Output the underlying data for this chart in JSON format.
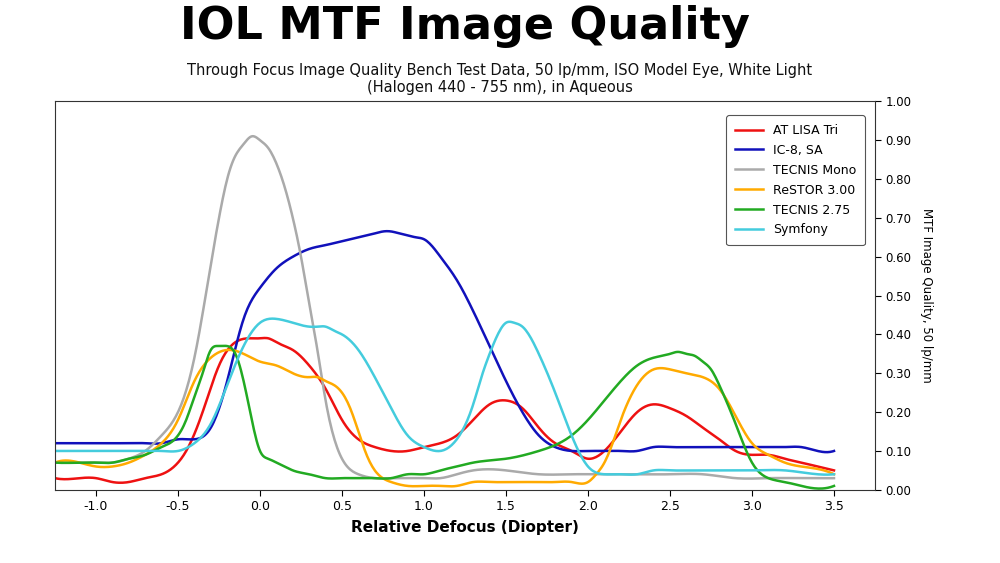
{
  "title": "IOL MTF Image Quality",
  "subtitle_line1": "Through Focus Image Quality Bench Test Data, 50 lp/mm, ISO Model Eye, White Light",
  "subtitle_line2": "(Halogen 440 - 755 nm), in Aqueous",
  "xlabel": "Relative Defocus (Diopter)",
  "ylabel": "MTF Image Quality, 50 lp/mm",
  "xlim": [
    -1.25,
    3.75
  ],
  "ylim": [
    0.0,
    1.0
  ],
  "xticks": [
    -1.0,
    -0.5,
    0.0,
    0.5,
    1.0,
    1.5,
    2.0,
    2.5,
    3.0,
    3.5
  ],
  "yticks_right": [
    0.0,
    0.1,
    0.2,
    0.3,
    0.4,
    0.5,
    0.6,
    0.7,
    0.8,
    0.9,
    1.0
  ],
  "background_color": "#ffffff",
  "title_fontsize": 32,
  "subtitle_fontsize": 10.5,
  "series": [
    {
      "name": "AT LISA Tri",
      "color": "#ee1111",
      "linewidth": 1.8,
      "x": [
        -1.25,
        -1.1,
        -1.0,
        -0.9,
        -0.8,
        -0.7,
        -0.6,
        -0.5,
        -0.45,
        -0.35,
        -0.25,
        -0.15,
        -0.05,
        0.0,
        0.05,
        0.1,
        0.15,
        0.2,
        0.3,
        0.4,
        0.5,
        0.6,
        0.7,
        0.8,
        0.9,
        1.0,
        1.1,
        1.2,
        1.3,
        1.4,
        1.5,
        1.6,
        1.7,
        1.8,
        1.9,
        2.0,
        2.1,
        2.2,
        2.3,
        2.4,
        2.5,
        2.6,
        2.7,
        2.8,
        2.9,
        3.0,
        3.1,
        3.2,
        3.3,
        3.4,
        3.5
      ],
      "y": [
        0.03,
        0.03,
        0.03,
        0.02,
        0.02,
        0.03,
        0.04,
        0.07,
        0.1,
        0.2,
        0.32,
        0.38,
        0.39,
        0.39,
        0.39,
        0.38,
        0.37,
        0.36,
        0.32,
        0.26,
        0.18,
        0.13,
        0.11,
        0.1,
        0.1,
        0.11,
        0.12,
        0.14,
        0.18,
        0.22,
        0.23,
        0.21,
        0.16,
        0.12,
        0.1,
        0.08,
        0.1,
        0.15,
        0.2,
        0.22,
        0.21,
        0.19,
        0.16,
        0.13,
        0.1,
        0.09,
        0.09,
        0.08,
        0.07,
        0.06,
        0.05
      ]
    },
    {
      "name": "IC-8, SA",
      "color": "#1111bb",
      "linewidth": 1.8,
      "x": [
        -1.25,
        -1.1,
        -1.0,
        -0.9,
        -0.8,
        -0.7,
        -0.6,
        -0.5,
        -0.4,
        -0.3,
        -0.2,
        -0.1,
        0.0,
        0.1,
        0.2,
        0.3,
        0.4,
        0.5,
        0.55,
        0.6,
        0.65,
        0.7,
        0.75,
        0.8,
        0.85,
        0.9,
        0.95,
        1.0,
        1.1,
        1.2,
        1.3,
        1.4,
        1.5,
        1.6,
        1.7,
        1.8,
        1.9,
        2.0,
        2.1,
        2.2,
        2.3,
        2.4,
        2.5,
        2.6,
        2.7,
        2.8,
        2.9,
        3.0,
        3.1,
        3.2,
        3.3,
        3.4,
        3.5
      ],
      "y": [
        0.12,
        0.12,
        0.12,
        0.12,
        0.12,
        0.12,
        0.12,
        0.13,
        0.13,
        0.16,
        0.28,
        0.44,
        0.52,
        0.57,
        0.6,
        0.62,
        0.63,
        0.64,
        0.645,
        0.65,
        0.655,
        0.66,
        0.665,
        0.665,
        0.66,
        0.655,
        0.65,
        0.645,
        0.6,
        0.54,
        0.46,
        0.37,
        0.28,
        0.2,
        0.14,
        0.11,
        0.1,
        0.1,
        0.1,
        0.1,
        0.1,
        0.11,
        0.11,
        0.11,
        0.11,
        0.11,
        0.11,
        0.11,
        0.11,
        0.11,
        0.11,
        0.1,
        0.1
      ]
    },
    {
      "name": "TECNIS Mono",
      "color": "#aaaaaa",
      "linewidth": 1.8,
      "x": [
        -1.25,
        -1.1,
        -1.0,
        -0.9,
        -0.8,
        -0.7,
        -0.6,
        -0.5,
        -0.4,
        -0.3,
        -0.25,
        -0.2,
        -0.15,
        -0.1,
        -0.05,
        0.0,
        0.05,
        0.1,
        0.15,
        0.2,
        0.25,
        0.3,
        0.35,
        0.4,
        0.5,
        0.6,
        0.7,
        0.8,
        0.9,
        1.0,
        1.1,
        1.2,
        1.3,
        1.5,
        1.7,
        1.9,
        2.1,
        2.3,
        2.5,
        2.7,
        2.9,
        3.1,
        3.3,
        3.5
      ],
      "y": [
        0.07,
        0.07,
        0.07,
        0.07,
        0.08,
        0.1,
        0.14,
        0.2,
        0.34,
        0.58,
        0.7,
        0.8,
        0.86,
        0.89,
        0.91,
        0.9,
        0.88,
        0.84,
        0.78,
        0.7,
        0.6,
        0.48,
        0.36,
        0.23,
        0.08,
        0.04,
        0.03,
        0.03,
        0.03,
        0.03,
        0.03,
        0.04,
        0.05,
        0.05,
        0.04,
        0.04,
        0.04,
        0.04,
        0.04,
        0.04,
        0.03,
        0.03,
        0.03,
        0.03
      ]
    },
    {
      "name": "ReSTOR 3.00",
      "color": "#ffaa00",
      "linewidth": 1.8,
      "x": [
        -1.25,
        -1.1,
        -1.0,
        -0.9,
        -0.8,
        -0.7,
        -0.6,
        -0.5,
        -0.4,
        -0.3,
        -0.2,
        -0.1,
        0.0,
        0.1,
        0.2,
        0.3,
        0.35,
        0.4,
        0.45,
        0.5,
        0.55,
        0.6,
        0.65,
        0.7,
        0.8,
        0.9,
        1.0,
        1.1,
        1.2,
        1.3,
        1.4,
        1.5,
        1.6,
        1.7,
        1.8,
        1.9,
        2.0,
        2.05,
        2.1,
        2.15,
        2.2,
        2.3,
        2.4,
        2.5,
        2.6,
        2.7,
        2.8,
        2.9,
        3.0,
        3.1,
        3.2,
        3.3,
        3.5
      ],
      "y": [
        0.07,
        0.07,
        0.06,
        0.06,
        0.07,
        0.09,
        0.12,
        0.18,
        0.28,
        0.34,
        0.36,
        0.35,
        0.33,
        0.32,
        0.3,
        0.29,
        0.29,
        0.28,
        0.27,
        0.25,
        0.21,
        0.15,
        0.09,
        0.05,
        0.02,
        0.01,
        0.01,
        0.01,
        0.01,
        0.02,
        0.02,
        0.02,
        0.02,
        0.02,
        0.02,
        0.02,
        0.02,
        0.04,
        0.07,
        0.12,
        0.18,
        0.27,
        0.31,
        0.31,
        0.3,
        0.29,
        0.26,
        0.19,
        0.12,
        0.09,
        0.07,
        0.06,
        0.04
      ]
    },
    {
      "name": "TECNIS 2.75",
      "color": "#22aa22",
      "linewidth": 1.8,
      "x": [
        -1.25,
        -1.1,
        -1.0,
        -0.9,
        -0.8,
        -0.7,
        -0.6,
        -0.55,
        -0.5,
        -0.45,
        -0.4,
        -0.35,
        -0.3,
        -0.25,
        -0.2,
        -0.15,
        -0.1,
        -0.05,
        0.0,
        0.05,
        0.1,
        0.15,
        0.2,
        0.3,
        0.4,
        0.5,
        0.6,
        0.7,
        0.8,
        0.9,
        1.0,
        1.1,
        1.2,
        1.3,
        1.5,
        1.7,
        1.9,
        2.0,
        2.1,
        2.2,
        2.3,
        2.4,
        2.5,
        2.55,
        2.6,
        2.65,
        2.7,
        2.75,
        2.8,
        2.9,
        3.0,
        3.1,
        3.2,
        3.3,
        3.5
      ],
      "y": [
        0.07,
        0.07,
        0.07,
        0.07,
        0.08,
        0.09,
        0.11,
        0.12,
        0.14,
        0.18,
        0.24,
        0.3,
        0.36,
        0.37,
        0.37,
        0.35,
        0.28,
        0.18,
        0.1,
        0.08,
        0.07,
        0.06,
        0.05,
        0.04,
        0.03,
        0.03,
        0.03,
        0.03,
        0.03,
        0.04,
        0.04,
        0.05,
        0.06,
        0.07,
        0.08,
        0.1,
        0.14,
        0.18,
        0.23,
        0.28,
        0.32,
        0.34,
        0.35,
        0.355,
        0.35,
        0.345,
        0.33,
        0.31,
        0.27,
        0.17,
        0.07,
        0.03,
        0.02,
        0.01,
        0.01
      ]
    },
    {
      "name": "Symfony",
      "color": "#44ccdd",
      "linewidth": 1.8,
      "x": [
        -1.25,
        -1.1,
        -1.0,
        -0.9,
        -0.8,
        -0.7,
        -0.6,
        -0.5,
        -0.4,
        -0.3,
        -0.2,
        -0.1,
        0.0,
        0.1,
        0.2,
        0.3,
        0.35,
        0.4,
        0.45,
        0.5,
        0.6,
        0.7,
        0.8,
        0.9,
        1.0,
        1.1,
        1.2,
        1.3,
        1.35,
        1.4,
        1.45,
        1.5,
        1.55,
        1.6,
        1.7,
        1.8,
        1.9,
        2.0,
        2.1,
        2.2,
        2.3,
        2.4,
        2.5,
        2.6,
        2.7,
        2.8,
        2.9,
        3.0,
        3.2,
        3.4,
        3.5
      ],
      "y": [
        0.1,
        0.1,
        0.1,
        0.1,
        0.1,
        0.1,
        0.1,
        0.1,
        0.12,
        0.17,
        0.27,
        0.37,
        0.43,
        0.44,
        0.43,
        0.42,
        0.42,
        0.42,
        0.41,
        0.4,
        0.36,
        0.29,
        0.21,
        0.14,
        0.11,
        0.1,
        0.13,
        0.22,
        0.29,
        0.35,
        0.4,
        0.43,
        0.43,
        0.42,
        0.35,
        0.25,
        0.14,
        0.06,
        0.04,
        0.04,
        0.04,
        0.05,
        0.05,
        0.05,
        0.05,
        0.05,
        0.05,
        0.05,
        0.05,
        0.04,
        0.04
      ]
    }
  ]
}
